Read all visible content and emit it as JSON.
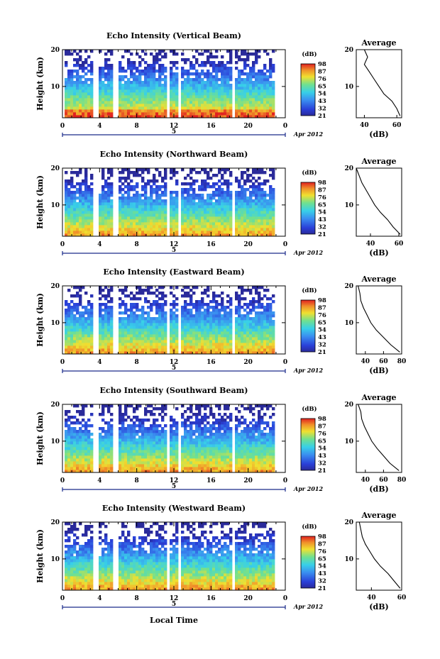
{
  "figure": {
    "xlabel": "Local Time",
    "date_label": "Apr 2012",
    "day_label": "5",
    "colorbar_unit": "(dB)",
    "colorbar_ticks": [
      "21",
      "32",
      "43",
      "54",
      "65",
      "76",
      "87",
      "98"
    ],
    "height_ylabel": "Height (km)",
    "avg_title": "Average",
    "avg_xlabel": "(dB)",
    "colors": {
      "low": "#2a2fd8",
      "mid": "#38d0e8",
      "high": "#f0e030",
      "top": "#e8302a"
    }
  },
  "chart_data": [
    {
      "type": "heatmap",
      "title": "Echo Intensity (Vertical Beam)",
      "ylabel": "Height (km)",
      "xlabel": "",
      "xticks": [
        "0",
        "4",
        "8",
        "12",
        "16",
        "20",
        "0"
      ],
      "yticks": [
        "10",
        "20"
      ],
      "xlim": [
        0,
        24
      ],
      "ylim": [
        1.5,
        20
      ],
      "colorbar": {
        "label": "(dB)",
        "ticks": [
          "21",
          "32",
          "43",
          "54",
          "65",
          "76",
          "87",
          "98"
        ],
        "range": [
          21,
          98
        ]
      },
      "average_profile": {
        "title": "Average",
        "xlabel": "(dB)",
        "xticks": [
          "40",
          "60"
        ],
        "yticks": [
          "10",
          "20"
        ],
        "xlim": [
          35,
          63
        ],
        "height_km": [
          20,
          18,
          16,
          14,
          12,
          10,
          8,
          6,
          4,
          2
        ],
        "db": [
          40,
          42,
          40,
          43,
          46,
          49,
          52,
          57,
          60,
          62
        ]
      }
    },
    {
      "type": "heatmap",
      "title": "Echo Intensity (Northward Beam)",
      "ylabel": "Height (km)",
      "xlabel": "",
      "xticks": [
        "0",
        "4",
        "8",
        "12",
        "16",
        "20",
        "0"
      ],
      "yticks": [
        "10",
        "20"
      ],
      "xlim": [
        0,
        24
      ],
      "ylim": [
        1.5,
        20
      ],
      "colorbar": {
        "label": "(dB)",
        "ticks": [
          "21",
          "32",
          "43",
          "54",
          "65",
          "76",
          "87",
          "98"
        ],
        "range": [
          21,
          98
        ]
      },
      "average_profile": {
        "title": "Average",
        "xlabel": "(dB)",
        "xticks": [
          "40",
          "60"
        ],
        "yticks": [
          "10",
          "20"
        ],
        "xlim": [
          30,
          62
        ],
        "height_km": [
          20,
          18,
          16,
          14,
          12,
          10,
          8,
          6,
          4,
          2
        ],
        "db": [
          30,
          32,
          34,
          37,
          40,
          43,
          47,
          52,
          56,
          61
        ]
      }
    },
    {
      "type": "heatmap",
      "title": "Echo Intensity (Eastward Beam)",
      "ylabel": "Height (km)",
      "xlabel": "",
      "xticks": [
        "0",
        "4",
        "8",
        "12",
        "16",
        "20",
        "0"
      ],
      "yticks": [
        "10",
        "20"
      ],
      "xlim": [
        0,
        24
      ],
      "ylim": [
        1.5,
        20
      ],
      "colorbar": {
        "label": "(dB)",
        "ticks": [
          "21",
          "32",
          "43",
          "54",
          "65",
          "76",
          "87",
          "98"
        ],
        "range": [
          21,
          98
        ]
      },
      "average_profile": {
        "title": "Average",
        "xlabel": "(dB)",
        "xticks": [
          "40",
          "60",
          "80"
        ],
        "yticks": [
          "10",
          "20"
        ],
        "xlim": [
          30,
          80
        ],
        "height_km": [
          20,
          18,
          16,
          14,
          12,
          10,
          8,
          6,
          4,
          2
        ],
        "db": [
          32,
          34,
          35,
          38,
          42,
          46,
          52,
          60,
          68,
          78
        ]
      }
    },
    {
      "type": "heatmap",
      "title": "Echo Intensity (Southward Beam)",
      "ylabel": "Height (km)",
      "xlabel": "",
      "xticks": [
        "0",
        "4",
        "8",
        "12",
        "16",
        "20",
        "0"
      ],
      "yticks": [
        "10",
        "20"
      ],
      "xlim": [
        0,
        24
      ],
      "ylim": [
        1.5,
        20
      ],
      "colorbar": {
        "label": "(dB)",
        "ticks": [
          "21",
          "32",
          "43",
          "54",
          "65",
          "76",
          "87",
          "98"
        ],
        "range": [
          21,
          98
        ]
      },
      "average_profile": {
        "title": "Average",
        "xlabel": "(dB)",
        "xticks": [
          "40",
          "60",
          "80"
        ],
        "yticks": [
          "10",
          "20"
        ],
        "xlim": [
          30,
          80
        ],
        "height_km": [
          20,
          18,
          16,
          14,
          12,
          10,
          8,
          6,
          4,
          2
        ],
        "db": [
          32,
          35,
          36,
          39,
          43,
          47,
          53,
          60,
          67,
          77
        ]
      }
    },
    {
      "type": "heatmap",
      "title": "Echo Intensity (Westward Beam)",
      "ylabel": "Height (km)",
      "xlabel": "Local Time",
      "xticks": [
        "0",
        "4",
        "8",
        "12",
        "16",
        "20",
        "0"
      ],
      "yticks": [
        "10",
        "20"
      ],
      "xlim": [
        0,
        24
      ],
      "ylim": [
        1.5,
        20
      ],
      "colorbar": {
        "label": "(dB)",
        "ticks": [
          "21",
          "32",
          "43",
          "54",
          "65",
          "76",
          "87",
          "98"
        ],
        "range": [
          21,
          98
        ]
      },
      "average_profile": {
        "title": "Average",
        "xlabel": "(dB)",
        "xticks": [
          "40",
          "60"
        ],
        "yticks": [
          "10",
          "20"
        ],
        "xlim": [
          30,
          60
        ],
        "height_km": [
          20,
          18,
          16,
          14,
          12,
          10,
          8,
          6,
          4,
          2
        ],
        "db": [
          32,
          33,
          34,
          36,
          39,
          42,
          46,
          51,
          55,
          59
        ]
      }
    }
  ]
}
